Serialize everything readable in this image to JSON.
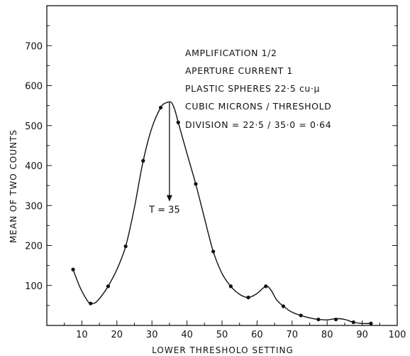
{
  "chart_data": {
    "type": "line",
    "xlabel": "LOWER THRESHOLO SETTING",
    "ylabel": "MEAN OF TWO COUNTS",
    "xlim": [
      0,
      100
    ],
    "ylim": [
      0,
      800
    ],
    "x_ticks": [
      10,
      20,
      30,
      40,
      50,
      60,
      70,
      80,
      90,
      100
    ],
    "y_ticks": [
      100,
      200,
      300,
      400,
      500,
      600,
      700
    ],
    "grid": false,
    "series": [
      {
        "points": [
          {
            "x": 7.5,
            "y": 140
          },
          {
            "x": 12.5,
            "y": 55
          },
          {
            "x": 17.5,
            "y": 98
          },
          {
            "x": 22.5,
            "y": 198
          },
          {
            "x": 27.5,
            "y": 412
          },
          {
            "x": 32.5,
            "y": 545
          },
          {
            "x": 37.5,
            "y": 508
          },
          {
            "x": 42.5,
            "y": 354
          },
          {
            "x": 47.5,
            "y": 185
          },
          {
            "x": 52.5,
            "y": 98
          },
          {
            "x": 57.5,
            "y": 70
          },
          {
            "x": 62.5,
            "y": 98
          },
          {
            "x": 67.5,
            "y": 48
          },
          {
            "x": 72.5,
            "y": 25
          },
          {
            "x": 77.5,
            "y": 15
          },
          {
            "x": 82.5,
            "y": 15
          },
          {
            "x": 87.5,
            "y": 8
          },
          {
            "x": 92.5,
            "y": 5
          }
        ],
        "curve": [
          [
            7.5,
            140
          ],
          [
            9.5,
            95
          ],
          [
            11.5,
            63
          ],
          [
            12.5,
            55
          ],
          [
            14,
            58
          ],
          [
            16,
            78
          ],
          [
            17.5,
            98
          ],
          [
            20,
            140
          ],
          [
            22.5,
            198
          ],
          [
            25,
            295
          ],
          [
            27.5,
            412
          ],
          [
            30,
            495
          ],
          [
            32.5,
            545
          ],
          [
            34,
            557
          ],
          [
            35.5,
            558
          ],
          [
            36.5,
            540
          ],
          [
            37.5,
            508
          ],
          [
            40,
            430
          ],
          [
            42.5,
            354
          ],
          [
            45,
            268
          ],
          [
            47.5,
            185
          ],
          [
            50,
            130
          ],
          [
            52.5,
            98
          ],
          [
            55,
            78
          ],
          [
            57.5,
            70
          ],
          [
            60,
            80
          ],
          [
            62.5,
            98
          ],
          [
            64,
            88
          ],
          [
            65.5,
            65
          ],
          [
            67.5,
            48
          ],
          [
            70,
            33
          ],
          [
            72.5,
            25
          ],
          [
            75,
            19
          ],
          [
            77.5,
            15
          ],
          [
            80,
            14
          ],
          [
            82.5,
            17
          ],
          [
            85,
            15
          ],
          [
            87.5,
            8
          ],
          [
            90,
            5
          ],
          [
            92.5,
            5
          ]
        ]
      }
    ],
    "annotations": [
      {
        "text": "AMPLIFICATION  1/2"
      },
      {
        "text": "APERTURE  CURRENT  1"
      },
      {
        "text": "PLASTIC  SPHERES  22·5     cu·μ"
      },
      {
        "text": "CUBIC  MICRONS / THRESHOLD"
      },
      {
        "text": "DIVISION  =  22·5 / 35·0 = 0·64"
      }
    ],
    "marker": {
      "label": "T = 35",
      "x": 35,
      "y_top": 558,
      "y_bottom": 310
    }
  }
}
